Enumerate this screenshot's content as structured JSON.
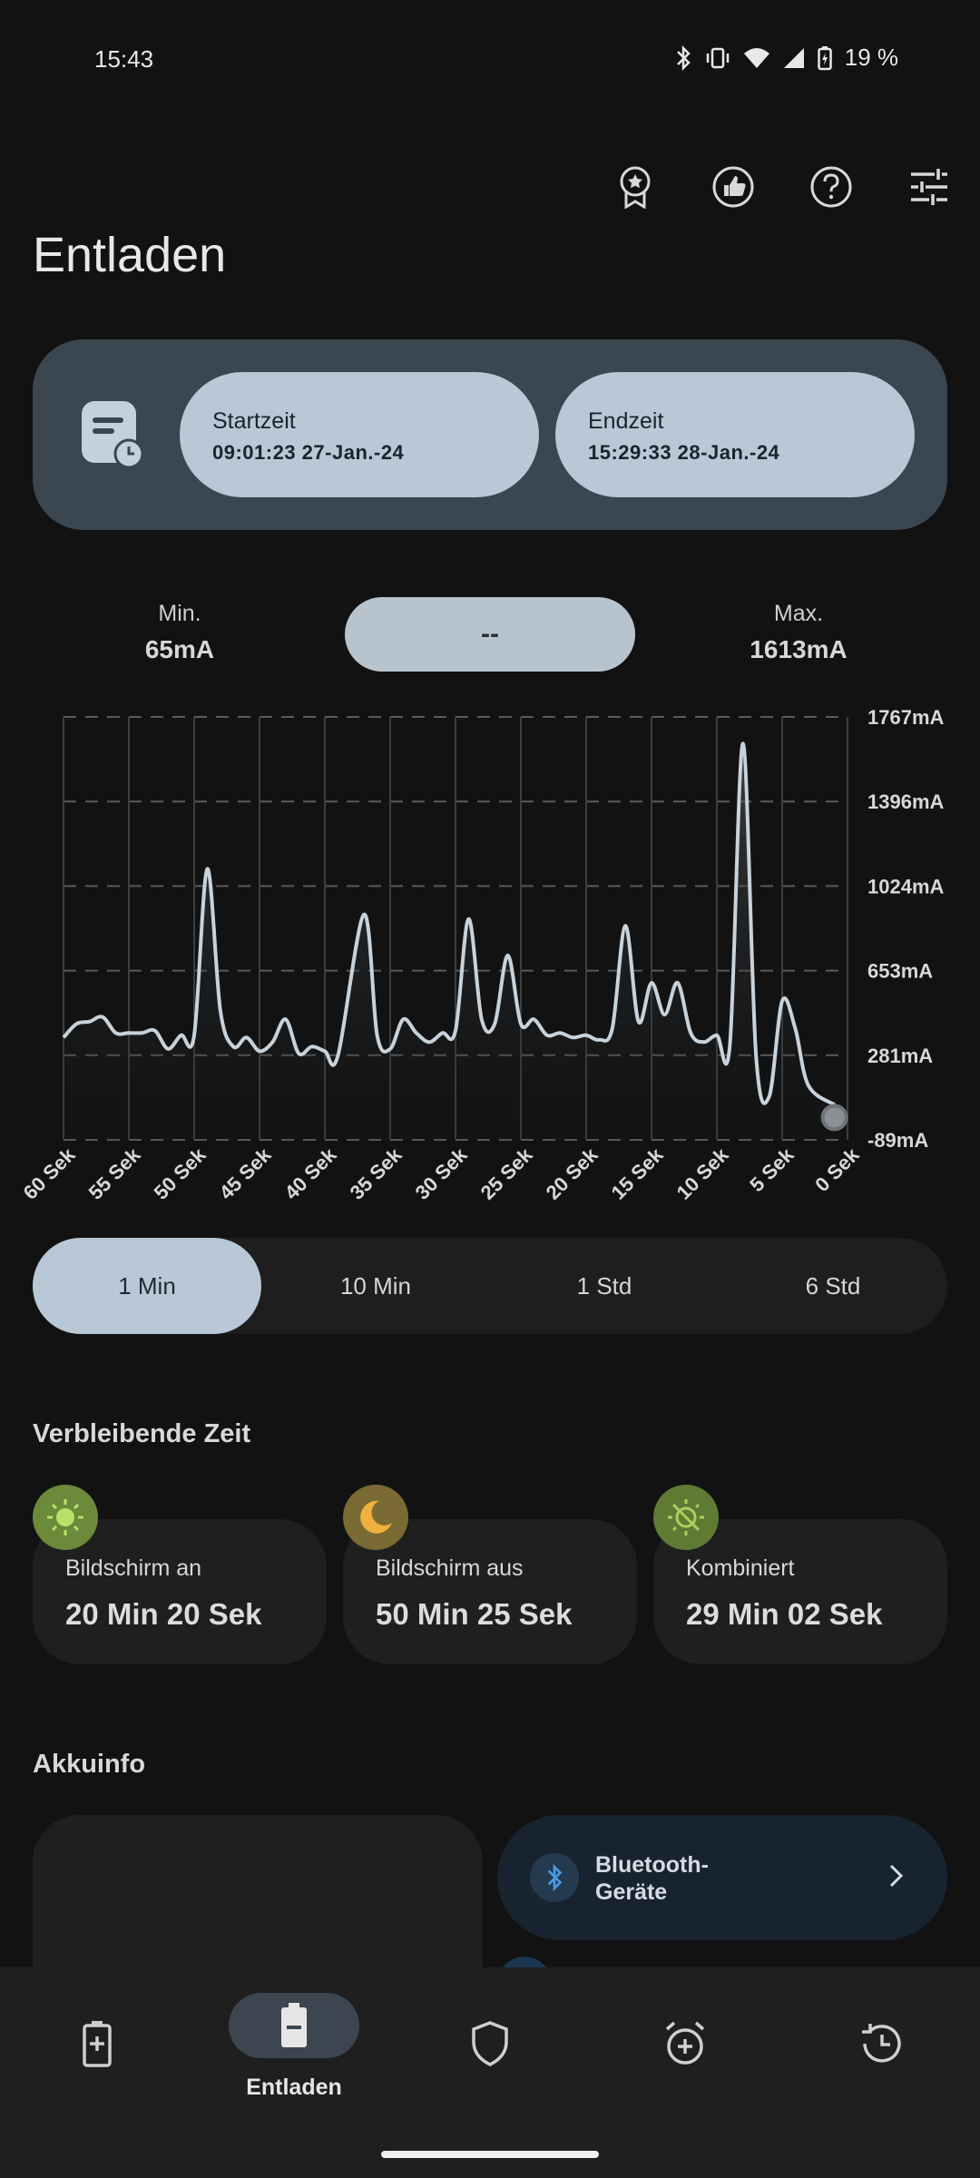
{
  "status_bar": {
    "time": "15:43",
    "battery_percent": "19 %"
  },
  "toolbar": {
    "icons": [
      "award-icon",
      "thumbs-up-icon",
      "help-icon",
      "settings-sliders-icon"
    ]
  },
  "page_title": "Entladen",
  "time_range": {
    "start_label": "Startzeit",
    "start_value": "09:01:23 27-Jan.-24",
    "end_label": "Endzeit",
    "end_value": "15:29:33 28-Jan.-24"
  },
  "stats": {
    "min_label": "Min.",
    "min_value": "65mA",
    "current_value": "--",
    "max_label": "Max.",
    "max_value": "1613mA"
  },
  "chart_data": {
    "type": "area",
    "y_ticks": [
      "1767mA",
      "1396mA",
      "1024mA",
      "653mA",
      "281mA",
      "-89mA"
    ],
    "ylim": [
      -89,
      1767
    ],
    "x_ticks": [
      "60 Sek",
      "55 Sek",
      "50 Sek",
      "45 Sek",
      "40 Sek",
      "35 Sek",
      "30 Sek",
      "25 Sek",
      "20 Sek",
      "15 Sek",
      "10 Sek",
      "5 Sek",
      "0 Sek"
    ],
    "xlim": [
      60,
      0
    ],
    "grid": true,
    "points": [
      [
        60,
        360
      ],
      [
        59,
        420
      ],
      [
        58,
        430
      ],
      [
        57,
        450
      ],
      [
        56,
        380
      ],
      [
        55,
        380
      ],
      [
        54,
        380
      ],
      [
        53,
        390
      ],
      [
        52,
        310
      ],
      [
        51,
        370
      ],
      [
        50,
        370
      ],
      [
        49,
        1100
      ],
      [
        48,
        480
      ],
      [
        47,
        320
      ],
      [
        46,
        360
      ],
      [
        45,
        300
      ],
      [
        44,
        340
      ],
      [
        43,
        440
      ],
      [
        42,
        290
      ],
      [
        41,
        320
      ],
      [
        40,
        300
      ],
      [
        39,
        280
      ],
      [
        37,
        900
      ],
      [
        36,
        370
      ],
      [
        35,
        310
      ],
      [
        34,
        440
      ],
      [
        33,
        380
      ],
      [
        32,
        340
      ],
      [
        31,
        380
      ],
      [
        30,
        390
      ],
      [
        29,
        880
      ],
      [
        28,
        440
      ],
      [
        27,
        420
      ],
      [
        26,
        720
      ],
      [
        25,
        420
      ],
      [
        24,
        440
      ],
      [
        23,
        370
      ],
      [
        22,
        380
      ],
      [
        21,
        360
      ],
      [
        20,
        370
      ],
      [
        19,
        350
      ],
      [
        18,
        400
      ],
      [
        17,
        850
      ],
      [
        16,
        430
      ],
      [
        15,
        600
      ],
      [
        14,
        460
      ],
      [
        13,
        600
      ],
      [
        12,
        380
      ],
      [
        11,
        340
      ],
      [
        10,
        370
      ],
      [
        9,
        330
      ],
      [
        8,
        1650
      ],
      [
        7,
        280
      ],
      [
        6,
        100
      ],
      [
        5,
        520
      ],
      [
        4,
        400
      ],
      [
        3,
        150
      ],
      [
        1,
        65
      ]
    ]
  },
  "range_tabs": {
    "items": [
      "1 Min",
      "10 Min",
      "1 Std",
      "6 Std"
    ],
    "active": 0
  },
  "remaining": {
    "title": "Verbleibende Zeit",
    "cards": [
      {
        "label": "Bildschirm an",
        "value": "20 Min 20 Sek",
        "icon": "sun-icon",
        "icon_bg": "#6b8a3a",
        "icon_fg": "#b8e06a"
      },
      {
        "label": "Bildschirm aus",
        "value": "50 Min 25 Sek",
        "icon": "moon-icon",
        "icon_bg": "#7a6a33",
        "icon_fg": "#f0b040"
      },
      {
        "label": "Kombiniert",
        "value": "29 Min 02 Sek",
        "icon": "sun-off-icon",
        "icon_bg": "#5f7a33",
        "icon_fg": "#a8d060"
      }
    ]
  },
  "akkuinfo": {
    "title": "Akkuinfo",
    "bluetooth_label": "Bluetooth-Geräte",
    "bluetooth_line1": "Bluetooth-",
    "bluetooth_line2": "Geräte"
  },
  "bottom_nav": {
    "active_label": "Entladen",
    "items": [
      "charging-icon",
      "discharging-icon",
      "shield-icon",
      "alarm-add-icon",
      "history-icon"
    ]
  },
  "colors": {
    "accent": "#b8c8d6",
    "card_bg": "#1f1f1f",
    "time_card_bg": "#3a4650",
    "background": "#121212"
  }
}
